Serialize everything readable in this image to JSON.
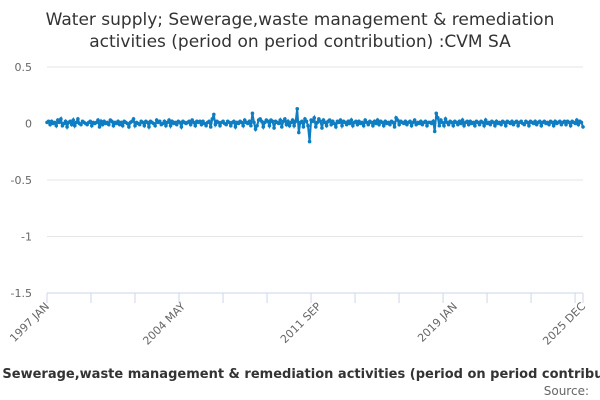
{
  "chart_data": {
    "type": "line",
    "title": "Water supply; Sewerage,waste management & remediation activities (period on period contribution) :CVM SA",
    "title_lines": [
      "Water supply; Sewerage,waste management & remediation",
      "activities (period on period contribution) :CVM SA"
    ],
    "legend": "Water supply; Sewerage,waste management & remediation activities (period on period contribution) :CVM SA",
    "source_label": "Source:",
    "x_start": "1997 JAN",
    "x_end": "2025 DEC",
    "x_tick_labels": [
      "1997 JAN",
      "2004 MAY",
      "2011 SEP",
      "2019 JAN",
      "2025 DEC"
    ],
    "x_tick_months": [
      0,
      88,
      176,
      264,
      347
    ],
    "y_ticks": [
      0.5,
      0,
      -0.5,
      -1,
      -1.5
    ],
    "y_tick_labels": [
      "0.5",
      "0",
      "-0.5",
      "-1",
      "-1.5"
    ],
    "ylim": [
      -1.5,
      0.5
    ],
    "grid": true,
    "color": "#0f7dc2",
    "values": [
      0.01,
      0.02,
      -0.01,
      0.02,
      0,
      0.01,
      -0.02,
      0.03,
      0.01,
      0.04,
      -0.02,
      0,
      0.02,
      -0.03,
      0.01,
      0.02,
      -0.01,
      0.03,
      -0.02,
      0.01,
      0.04,
      0,
      -0.01,
      0.02,
      0.01,
      0,
      -0.01,
      0.01,
      0.02,
      -0.02,
      0.01,
      0,
      0.01,
      0.03,
      -0.03,
      0.02,
      -0.01,
      0.02,
      0,
      0.01,
      -0.01,
      0.03,
      0.02,
      -0.02,
      0.01,
      0,
      0.02,
      -0.01,
      0.01,
      -0.02,
      0.02,
      0.01,
      0,
      -0.03,
      0.01,
      0.02,
      0.04,
      -0.02,
      0.01,
      0,
      -0.01,
      0.02,
      0.01,
      -0.02,
      0.02,
      0.01,
      -0.03,
      0.02,
      0.01,
      0,
      -0.02,
      0.03,
      0.01,
      0.02,
      -0.01,
      0,
      0.02,
      -0.02,
      0.01,
      0.03,
      -0.02,
      0.02,
      0,
      0.01,
      -0.01,
      0.02,
      0.01,
      -0.03,
      0.02,
      0.01,
      0,
      0.01,
      0.02,
      -0.01,
      0.03,
      0.01,
      -0.02,
      0.02,
      0.01,
      0.02,
      -0.01,
      0.02,
      0,
      -0.02,
      0.01,
      0.02,
      -0.03,
      0.04,
      0.08,
      -0.01,
      0.02,
      0.01,
      -0.02,
      0.01,
      0.02,
      0,
      -0.01,
      0.02,
      0.01,
      -0.02,
      0.01,
      0.02,
      -0.03,
      0.01,
      0,
      0.02,
      0.01,
      -0.02,
      0.03,
      0.01,
      0,
      0.02,
      -0.02,
      0.09,
      0.01,
      -0.05,
      -0.02,
      0.03,
      0.04,
      0.02,
      -0.03,
      0.01,
      0.03,
      0.02,
      -0.02,
      0.03,
      0.02,
      -0.04,
      0.02,
      0.01,
      0,
      0.03,
      -0.03,
      0.02,
      0.04,
      -0.01,
      0.02,
      -0.02,
      0.01,
      0.03,
      -0.02,
      0.02,
      0.13,
      -0.08,
      0.01,
      0.02,
      -0.03,
      0.04,
      0.02,
      -0.02,
      -0.16,
      0.03,
      0.02,
      0.05,
      -0.03,
      0.01,
      0.04,
      0.02,
      -0.04,
      0.03,
      0.01,
      -0.02,
      0.02,
      0.03,
      -0.01,
      0.02,
      0,
      -0.03,
      0.02,
      0.01,
      0.03,
      -0.02,
      0.02,
      0.01,
      -0.01,
      0.02,
      0,
      0.03,
      -0.02,
      0.01,
      0.02,
      -0.01,
      0.02,
      0,
      0.01,
      -0.02,
      0.03,
      0.01,
      -0.01,
      0.02,
      0.01,
      -0.02,
      0.02,
      0,
      0.03,
      -0.01,
      0.02,
      0.01,
      -0.02,
      0.02,
      0,
      0.01,
      -0.01,
      0.02,
      0.01,
      -0.03,
      0.05,
      0.03,
      -0.01,
      0.02,
      0.01,
      0,
      0.02,
      -0.01,
      0.01,
      0.02,
      -0.02,
      0.01,
      0.03,
      -0.01,
      0.01,
      0,
      0.02,
      -0.01,
      0.01,
      0.02,
      -0.02,
      0.01,
      0.01,
      0,
      0.02,
      -0.07,
      0.09,
      0.05,
      -0.02,
      0.03,
      0.01,
      -0.02,
      0.04,
      0.01,
      -0.01,
      0.02,
      0.01,
      -0.02,
      0.02,
      0.01,
      -0.01,
      0.02,
      0,
      0.03,
      -0.02,
      0.01,
      0.02,
      -0.01,
      0.02,
      0,
      0.01,
      -0.02,
      0.02,
      0.01,
      -0.01,
      0.02,
      0.01,
      -0.02,
      0.03,
      0,
      0.01,
      -0.01,
      0.02,
      0.01,
      -0.02,
      0.02,
      0,
      0.01,
      -0.01,
      0.02,
      0.01,
      -0.02,
      0.02,
      0.01,
      0,
      0.02,
      -0.01,
      0.01,
      0.02,
      -0.02,
      0.01,
      0.02,
      0,
      -0.01,
      0.02,
      0.01,
      -0.02,
      0.02,
      0.01,
      0,
      0.02,
      -0.01,
      0.01,
      0.02,
      -0.02,
      0.01,
      0.02,
      0,
      0.01,
      -0.01,
      0.02,
      0.01,
      -0.02,
      0.02,
      0,
      0.01,
      0.02,
      -0.01,
      0.01,
      0.02,
      -0.01,
      0.02,
      0.01,
      -0.02,
      0.02,
      0.01,
      0,
      0.03,
      -0.01,
      0.02,
      0.01,
      -0.03
    ]
  }
}
